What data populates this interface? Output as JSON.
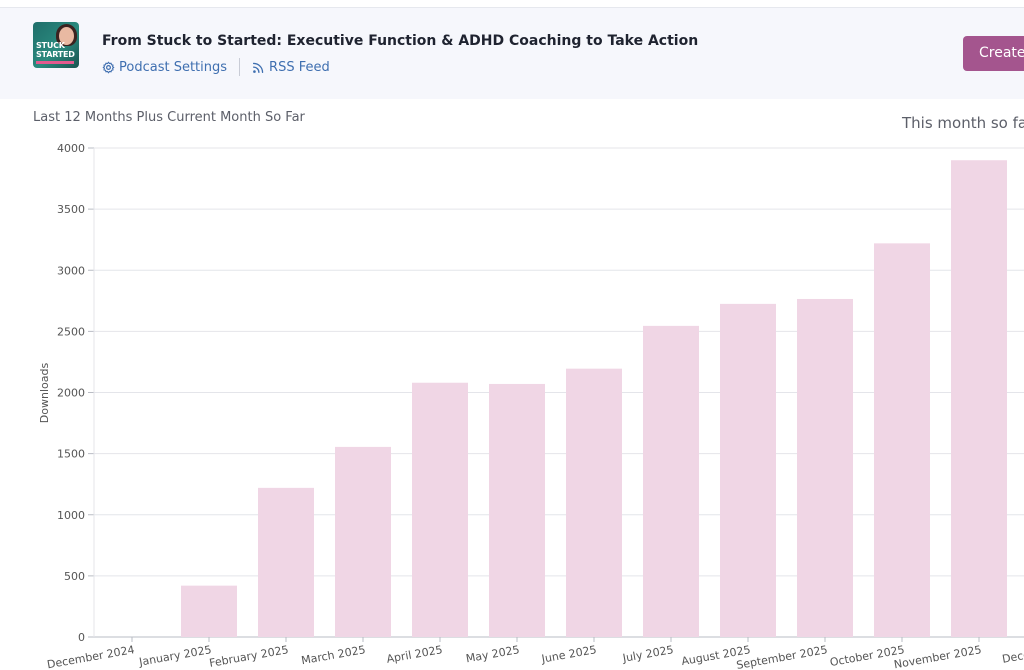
{
  "header": {
    "artwork_line1": "STUCK",
    "artwork_line2": "STARTED",
    "title": "From Stuck to Started: Executive Function & ADHD Coaching to Take Action",
    "settings_link": "Podcast Settings",
    "rss_link": "RSS Feed",
    "create_button": "Create",
    "icons": {
      "settings": "gear-icon",
      "rss": "rss-icon"
    }
  },
  "colors": {
    "header_bg": "#f6f7fc",
    "accent_button": "#a4558e",
    "link": "#3f6fb0",
    "bar": "#f0d6e5"
  },
  "chart_caption": "Last 12 Months Plus Current Month So Far",
  "month_caption": "This month so fa",
  "chart_data": {
    "type": "bar",
    "title": "",
    "xlabel": "",
    "ylabel": "Downloads",
    "ylim": [
      0,
      4000
    ],
    "yticks": [
      0,
      500,
      1000,
      1500,
      2000,
      2500,
      3000,
      3500,
      4000
    ],
    "grid": true,
    "categories": [
      "December 2024",
      "January 2025",
      "February 2025",
      "March 2025",
      "April 2025",
      "May 2025",
      "June 2025",
      "July 2025",
      "August 2025",
      "September 2025",
      "October 2025",
      "November 2025",
      "December"
    ],
    "values": [
      0,
      420,
      1220,
      1555,
      2080,
      2070,
      2195,
      2545,
      2725,
      2765,
      3220,
      3900,
      null
    ]
  }
}
